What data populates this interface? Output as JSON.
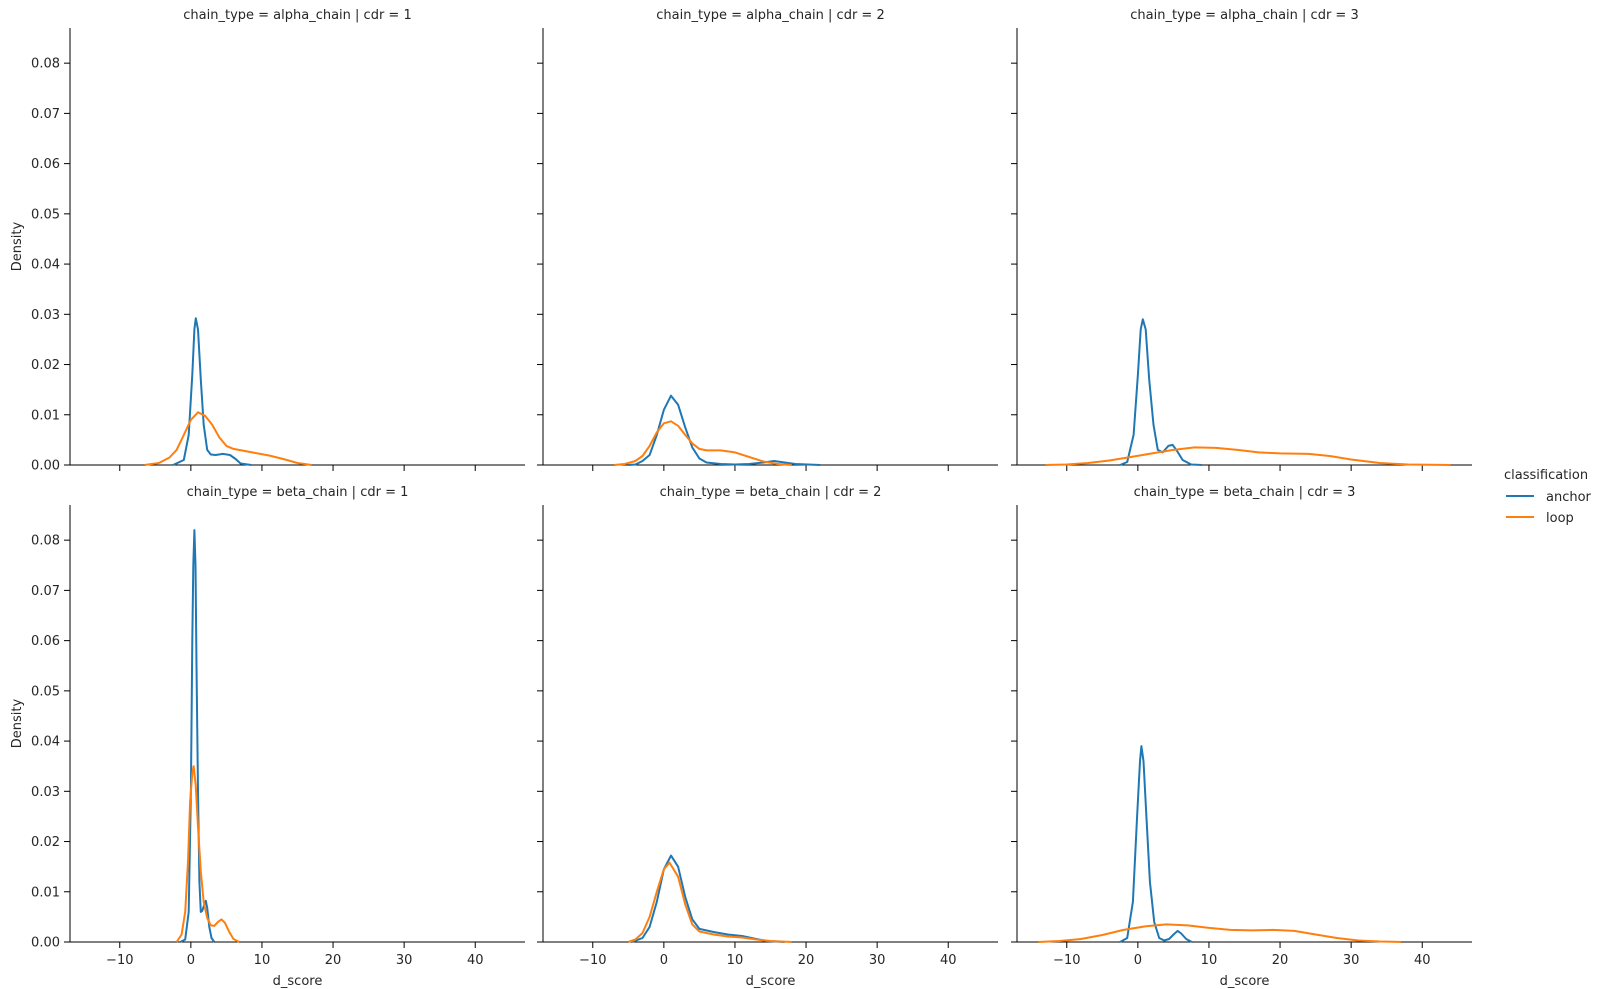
{
  "figure": {
    "legend_title": "classification",
    "legend_position": "right"
  },
  "chart_data": {
    "type": "line",
    "kind": "kde",
    "xlabel": "d_score",
    "ylabel": "Density",
    "xlim": [
      -17,
      47
    ],
    "ylim": [
      0,
      0.087
    ],
    "xticks": [
      -10,
      0,
      10,
      20,
      30,
      40
    ],
    "yticks": [
      0.0,
      0.01,
      0.02,
      0.03,
      0.04,
      0.05,
      0.06,
      0.07,
      0.08
    ],
    "grid": false,
    "sharex": true,
    "sharey": true,
    "legend_entries": [
      {
        "name": "anchor",
        "color": "#1f77b4"
      },
      {
        "name": "loop",
        "color": "#ff7f0e"
      }
    ],
    "panels": [
      {
        "title": "chain_type = alpha_chain | cdr = 1",
        "series": [
          {
            "name": "anchor",
            "color": "#1f77b4",
            "points": [
              [
                -2.5,
                0
              ],
              [
                -1,
                0.001
              ],
              [
                -0.3,
                0.006
              ],
              [
                0.2,
                0.018
              ],
              [
                0.5,
                0.027
              ],
              [
                0.7,
                0.0292
              ],
              [
                1.0,
                0.027
              ],
              [
                1.4,
                0.017
              ],
              [
                1.8,
                0.008
              ],
              [
                2.3,
                0.003
              ],
              [
                2.8,
                0.0021
              ],
              [
                3.5,
                0.002
              ],
              [
                4.5,
                0.0022
              ],
              [
                5.5,
                0.002
              ],
              [
                6.3,
                0.0012
              ],
              [
                7,
                0.0003
              ],
              [
                8.5,
                0
              ]
            ]
          },
          {
            "name": "loop",
            "color": "#ff7f0e",
            "points": [
              [
                -6.5,
                0
              ],
              [
                -4.5,
                0.0004
              ],
              [
                -3,
                0.0015
              ],
              [
                -2,
                0.003
              ],
              [
                -1,
                0.006
              ],
              [
                0,
                0.009
              ],
              [
                1,
                0.0105
              ],
              [
                2,
                0.0098
              ],
              [
                3,
                0.008
              ],
              [
                4,
                0.0055
              ],
              [
                5,
                0.0038
              ],
              [
                6,
                0.0032
              ],
              [
                7.5,
                0.0028
              ],
              [
                9,
                0.0024
              ],
              [
                11,
                0.0019
              ],
              [
                13,
                0.0012
              ],
              [
                15,
                0.0004
              ],
              [
                17,
                0
              ]
            ]
          }
        ]
      },
      {
        "title": "chain_type = alpha_chain | cdr = 2",
        "series": [
          {
            "name": "anchor",
            "color": "#1f77b4",
            "points": [
              [
                -5,
                0
              ],
              [
                -4,
                0.0001
              ],
              [
                -3,
                0.0008
              ],
              [
                -2,
                0.002
              ],
              [
                -1,
                0.006
              ],
              [
                0,
                0.011
              ],
              [
                1,
                0.0138
              ],
              [
                2,
                0.012
              ],
              [
                3,
                0.0075
              ],
              [
                4,
                0.0035
              ],
              [
                5,
                0.0013
              ],
              [
                6,
                0.0005
              ],
              [
                8,
                0.0002
              ],
              [
                10,
                0.0001
              ],
              [
                12,
                0.0002
              ],
              [
                14,
                0.0005
              ],
              [
                15.5,
                0.0008
              ],
              [
                17,
                0.0005
              ],
              [
                18.5,
                0.0002
              ],
              [
                22,
                0
              ]
            ]
          },
          {
            "name": "loop",
            "color": "#ff7f0e",
            "points": [
              [
                -7,
                0
              ],
              [
                -5.5,
                0.0002
              ],
              [
                -4,
                0.0008
              ],
              [
                -3,
                0.0018
              ],
              [
                -2,
                0.0038
              ],
              [
                -1,
                0.0065
              ],
              [
                0,
                0.0083
              ],
              [
                1,
                0.0087
              ],
              [
                2,
                0.0078
              ],
              [
                3,
                0.006
              ],
              [
                4,
                0.0043
              ],
              [
                5,
                0.0032
              ],
              [
                6,
                0.0029
              ],
              [
                8,
                0.0029
              ],
              [
                10,
                0.0025
              ],
              [
                12,
                0.0016
              ],
              [
                14,
                0.0007
              ],
              [
                16,
                0.0002
              ],
              [
                18,
                0
              ]
            ]
          }
        ]
      },
      {
        "title": "chain_type = alpha_chain | cdr = 3",
        "series": [
          {
            "name": "anchor",
            "color": "#1f77b4",
            "points": [
              [
                -2.5,
                0
              ],
              [
                -1.5,
                0.0006
              ],
              [
                -0.6,
                0.006
              ],
              [
                0,
                0.018
              ],
              [
                0.4,
                0.027
              ],
              [
                0.7,
                0.029
              ],
              [
                1.1,
                0.027
              ],
              [
                1.6,
                0.017
              ],
              [
                2.2,
                0.008
              ],
              [
                2.8,
                0.003
              ],
              [
                3.5,
                0.0025
              ],
              [
                4.3,
                0.0038
              ],
              [
                4.9,
                0.004
              ],
              [
                5.5,
                0.0028
              ],
              [
                6.3,
                0.001
              ],
              [
                7.5,
                0.0001
              ],
              [
                9,
                0
              ]
            ]
          },
          {
            "name": "loop",
            "color": "#ff7f0e",
            "points": [
              [
                -13,
                0
              ],
              [
                -10,
                0.0001
              ],
              [
                -7,
                0.0004
              ],
              [
                -4,
                0.0009
              ],
              [
                -1,
                0.0016
              ],
              [
                2,
                0.0023
              ],
              [
                5,
                0.003
              ],
              [
                8,
                0.0035
              ],
              [
                11,
                0.0034
              ],
              [
                14,
                0.003
              ],
              [
                17,
                0.0025
              ],
              [
                20,
                0.0023
              ],
              [
                24,
                0.0022
              ],
              [
                27,
                0.0018
              ],
              [
                30,
                0.0011
              ],
              [
                34,
                0.0004
              ],
              [
                38,
                0.0001
              ],
              [
                44,
                0
              ]
            ]
          }
        ]
      },
      {
        "title": "chain_type = beta_chain | cdr = 1",
        "series": [
          {
            "name": "anchor",
            "color": "#1f77b4",
            "points": [
              [
                -1.5,
                0
              ],
              [
                -0.8,
                0.0005
              ],
              [
                -0.3,
                0.006
              ],
              [
                0,
                0.03
              ],
              [
                0.2,
                0.06
              ],
              [
                0.35,
                0.075
              ],
              [
                0.5,
                0.082
              ],
              [
                0.65,
                0.075
              ],
              [
                0.8,
                0.055
              ],
              [
                1.0,
                0.03
              ],
              [
                1.2,
                0.012
              ],
              [
                1.4,
                0.006
              ],
              [
                1.6,
                0.0062
              ],
              [
                1.9,
                0.0075
              ],
              [
                2.1,
                0.0082
              ],
              [
                2.3,
                0.0068
              ],
              [
                2.6,
                0.003
              ],
              [
                2.9,
                0.0008
              ],
              [
                3.3,
                0
              ]
            ]
          },
          {
            "name": "loop",
            "color": "#ff7f0e",
            "points": [
              [
                -2,
                0
              ],
              [
                -1.3,
                0.0015
              ],
              [
                -0.8,
                0.006
              ],
              [
                -0.4,
                0.016
              ],
              [
                -0.1,
                0.028
              ],
              [
                0.2,
                0.0335
              ],
              [
                0.4,
                0.035
              ],
              [
                0.7,
                0.031
              ],
              [
                1,
                0.023
              ],
              [
                1.4,
                0.014
              ],
              [
                1.8,
                0.008
              ],
              [
                2.3,
                0.0048
              ],
              [
                2.8,
                0.0033
              ],
              [
                3.3,
                0.0032
              ],
              [
                3.8,
                0.004
              ],
              [
                4.3,
                0.0045
              ],
              [
                4.8,
                0.0038
              ],
              [
                5.4,
                0.002
              ],
              [
                6,
                0.0006
              ],
              [
                6.8,
                0
              ]
            ]
          }
        ]
      },
      {
        "title": "chain_type = beta_chain | cdr = 2",
        "series": [
          {
            "name": "anchor",
            "color": "#1f77b4",
            "points": [
              [
                -4.5,
                0
              ],
              [
                -3,
                0.0008
              ],
              [
                -2,
                0.003
              ],
              [
                -1,
                0.008
              ],
              [
                0,
                0.0145
              ],
              [
                1,
                0.0172
              ],
              [
                2,
                0.015
              ],
              [
                3,
                0.009
              ],
              [
                4,
                0.0045
              ],
              [
                5,
                0.0026
              ],
              [
                7,
                0.002
              ],
              [
                9,
                0.0015
              ],
              [
                11,
                0.0012
              ],
              [
                13,
                0.0006
              ],
              [
                14.5,
                0.0002
              ],
              [
                17,
                0
              ]
            ]
          },
          {
            "name": "loop",
            "color": "#ff7f0e",
            "points": [
              [
                -5,
                0
              ],
              [
                -4,
                0.0005
              ],
              [
                -3,
                0.0018
              ],
              [
                -2,
                0.005
              ],
              [
                -1,
                0.01
              ],
              [
                0,
                0.0145
              ],
              [
                0.8,
                0.0158
              ],
              [
                2,
                0.013
              ],
              [
                3,
                0.0075
              ],
              [
                4,
                0.0035
              ],
              [
                5,
                0.0021
              ],
              [
                7,
                0.0015
              ],
              [
                9,
                0.0011
              ],
              [
                11,
                0.0009
              ],
              [
                13,
                0.0005
              ],
              [
                15,
                0.0002
              ],
              [
                18,
                0
              ]
            ]
          }
        ]
      },
      {
        "title": "chain_type = beta_chain | cdr = 3",
        "series": [
          {
            "name": "anchor",
            "color": "#1f77b4",
            "points": [
              [
                -2.5,
                0
              ],
              [
                -1.5,
                0.0008
              ],
              [
                -0.7,
                0.008
              ],
              [
                -0.1,
                0.025
              ],
              [
                0.3,
                0.036
              ],
              [
                0.5,
                0.039
              ],
              [
                0.8,
                0.036
              ],
              [
                1.2,
                0.025
              ],
              [
                1.7,
                0.012
              ],
              [
                2.3,
                0.004
              ],
              [
                3,
                0.0008
              ],
              [
                3.7,
                0.0003
              ],
              [
                4.4,
                0.0006
              ],
              [
                5.1,
                0.0016
              ],
              [
                5.6,
                0.0022
              ],
              [
                6.1,
                0.0017
              ],
              [
                6.8,
                0.0006
              ],
              [
                7.6,
                0
              ]
            ]
          },
          {
            "name": "loop",
            "color": "#ff7f0e",
            "points": [
              [
                -14,
                0
              ],
              [
                -11,
                0.0002
              ],
              [
                -8,
                0.0006
              ],
              [
                -5,
                0.0014
              ],
              [
                -2,
                0.0024
              ],
              [
                1,
                0.0031
              ],
              [
                4,
                0.0035
              ],
              [
                7,
                0.0033
              ],
              [
                10,
                0.0028
              ],
              [
                13,
                0.0024
              ],
              [
                16,
                0.0023
              ],
              [
                19,
                0.0024
              ],
              [
                22,
                0.0022
              ],
              [
                25,
                0.0015
              ],
              [
                28,
                0.0008
              ],
              [
                31,
                0.0003
              ],
              [
                34,
                0.0001
              ],
              [
                37,
                0
              ]
            ]
          }
        ]
      }
    ]
  }
}
